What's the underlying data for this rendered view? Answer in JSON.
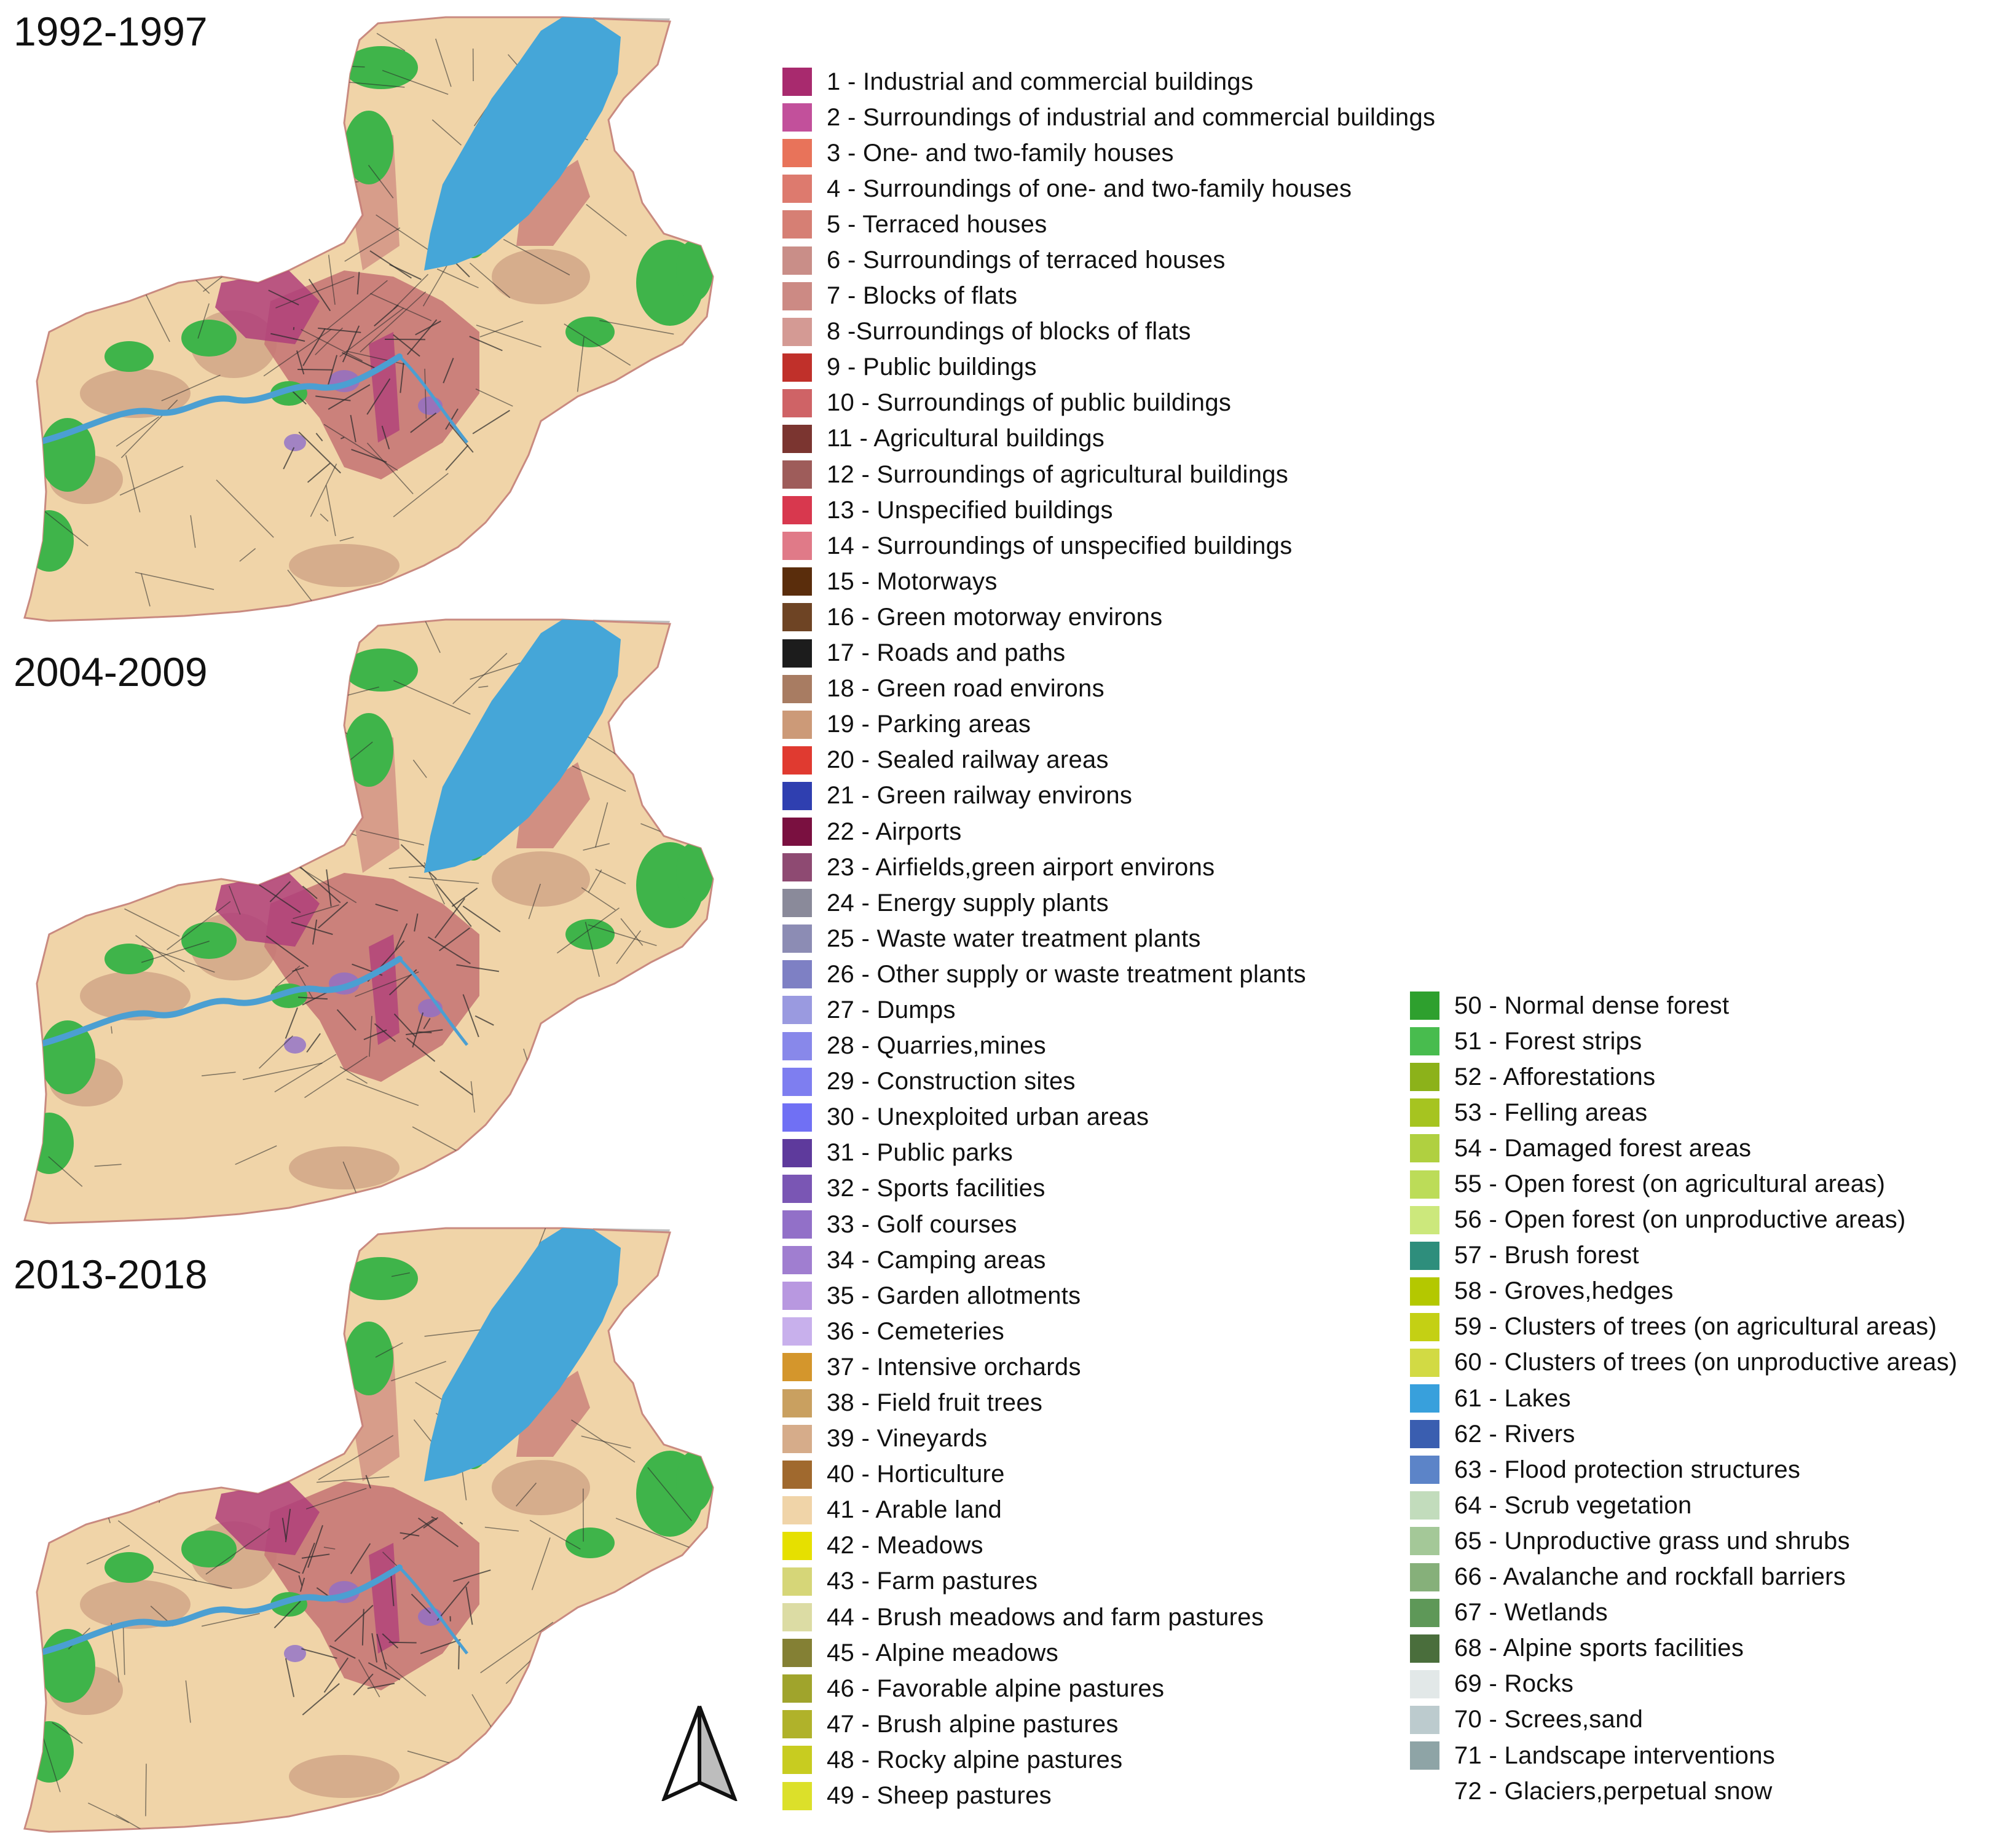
{
  "panels": [
    {
      "title": "1992-1997"
    },
    {
      "title": "2004-2009"
    },
    {
      "title": "2013-2018"
    }
  ],
  "map_colors": {
    "lake": "#45a6d8",
    "arable": "#f0d4a8",
    "urban": "#c77876",
    "industrial": "#b0407a",
    "forest": "#3fb44a",
    "river": "#4b9fd2",
    "vineyard": "#d6ad8c",
    "foreign": "#c0c0c0",
    "roads": "#2a2a2a",
    "parks": "#8e6ec9"
  },
  "north_arrow_icon": "north-arrow-icon",
  "legend": {
    "left": [
      {
        "label": "1 - Industrial and commercial buildings",
        "color": "#a82a6e"
      },
      {
        "label": "2 - Surroundings of industrial and commercial buildings",
        "color": "#c2509b"
      },
      {
        "label": "3 - One- and two-family houses",
        "color": "#e8735a"
      },
      {
        "label": "4 - Surroundings of one- and two-family houses",
        "color": "#dd7a6e"
      },
      {
        "label": "5 - Terraced houses",
        "color": "#d67f74"
      },
      {
        "label": "6 - Surroundings of terraced houses",
        "color": "#c98e88"
      },
      {
        "label": "7 - Blocks of flats",
        "color": "#cc8a84"
      },
      {
        "label": "8 -Surroundings of blocks of flats",
        "color": "#d49a94"
      },
      {
        "label": "9 - Public buildings",
        "color": "#c0302a"
      },
      {
        "label": "10 - Surroundings of public buildings",
        "color": "#cf6366"
      },
      {
        "label": "11 - Agricultural buildings",
        "color": "#7b3530"
      },
      {
        "label": "12 - Surroundings of agricultural buildings",
        "color": "#9e5c5a"
      },
      {
        "label": "13 - Unspecified buildings",
        "color": "#d8384e"
      },
      {
        "label": "14 - Surroundings of unspecified buildings",
        "color": "#e07a88"
      },
      {
        "label": "15 - Motorways",
        "color": "#5a2d0c"
      },
      {
        "label": "16 - Green motorway environs",
        "color": "#6e4424"
      },
      {
        "label": "17 - Roads and paths",
        "color": "#1c1c1c"
      },
      {
        "label": "18 - Green road environs",
        "color": "#a87c62"
      },
      {
        "label": "19 - Parking areas",
        "color": "#cc9a78"
      },
      {
        "label": "20 - Sealed railway areas",
        "color": "#e03a30"
      },
      {
        "label": "21 - Green railway environs",
        "color": "#2f3fb0"
      },
      {
        "label": "22 - Airports",
        "color": "#7a1040"
      },
      {
        "label": "23 - Airfields,green airport environs",
        "color": "#8e4a72"
      },
      {
        "label": "24 - Energy supply plants",
        "color": "#8a8a9a"
      },
      {
        "label": "25 - Waste water treatment plants",
        "color": "#8c8cb4"
      },
      {
        "label": "26 - Other supply or waste treatment plants",
        "color": "#7e80c4"
      },
      {
        "label": "27 - Dumps",
        "color": "#9a9ae0"
      },
      {
        "label": "28 - Quarries,mines",
        "color": "#8888ea"
      },
      {
        "label": "29 - Construction sites",
        "color": "#7e7ef0"
      },
      {
        "label": "30 - Unexploited urban areas",
        "color": "#7070f4"
      },
      {
        "label": "31 - Public parks",
        "color": "#5e3a9c"
      },
      {
        "label": "32 - Sports facilities",
        "color": "#7a56b4"
      },
      {
        "label": "33 - Golf courses",
        "color": "#9270c8"
      },
      {
        "label": "34 - Camping areas",
        "color": "#a07ed0"
      },
      {
        "label": "35 - Garden allotments",
        "color": "#b898e0"
      },
      {
        "label": "36 - Cemeteries",
        "color": "#c8b0ec"
      },
      {
        "label": "37 - Intensive orchards",
        "color": "#d4962c"
      },
      {
        "label": "38 - Field fruit trees",
        "color": "#c9a060"
      },
      {
        "label": "39 - Vineyards",
        "color": "#d6ac8a"
      },
      {
        "label": "40 - Horticulture",
        "color": "#a0692e"
      },
      {
        "label": "41 - Arable land",
        "color": "#f0d4a8"
      },
      {
        "label": "42 - Meadows",
        "color": "#e6e000"
      },
      {
        "label": "43 - Farm pastures",
        "color": "#d6d678"
      },
      {
        "label": "44 - Brush meadows and farm pastures",
        "color": "#dcdca4"
      },
      {
        "label": "45 - Alpine meadows",
        "color": "#848034"
      },
      {
        "label": "46 - Favorable alpine pastures",
        "color": "#a0a42c"
      },
      {
        "label": "47 - Brush alpine pastures",
        "color": "#b0b22a"
      },
      {
        "label": "48 - Rocky alpine pastures",
        "color": "#c8cc20"
      },
      {
        "label": "49 - Sheep pastures",
        "color": "#dce02a"
      }
    ],
    "right": [
      {
        "label": "50 - Normal dense forest",
        "color": "#2ea02e"
      },
      {
        "label": "51 - Forest strips",
        "color": "#48bc4e"
      },
      {
        "label": "52 - Afforestations",
        "color": "#8cb21a"
      },
      {
        "label": "53 - Felling areas",
        "color": "#a6c420"
      },
      {
        "label": "54 - Damaged forest areas",
        "color": "#b0d040"
      },
      {
        "label": "55 - Open forest (on agricultural areas)",
        "color": "#bcdc58"
      },
      {
        "label": "56 - Open forest (on unproductive areas)",
        "color": "#cce87c"
      },
      {
        "label": "57 - Brush forest",
        "color": "#2e8e7c"
      },
      {
        "label": "58 - Groves,hedges",
        "color": "#b4c800"
      },
      {
        "label": "59 - Clusters of trees (on agricultural areas)",
        "color": "#c4d014"
      },
      {
        "label": "60 - Clusters of trees (on unproductive areas)",
        "color": "#d2da44"
      },
      {
        "label": "61 - Lakes",
        "color": "#38a0dc"
      },
      {
        "label": "62 - Rivers",
        "color": "#3a5eb0"
      },
      {
        "label": "63 - Flood protection structures",
        "color": "#5c84c8"
      },
      {
        "label": "64 - Scrub vegetation",
        "color": "#c2dcbc"
      },
      {
        "label": "65 - Unproductive grass und shrubs",
        "color": "#a4c898"
      },
      {
        "label": "66 - Avalanche and rockfall barriers",
        "color": "#86b07a"
      },
      {
        "label": "67 - Wetlands",
        "color": "#5e9858"
      },
      {
        "label": "68 - Alpine sports facilities",
        "color": "#4a6e3c"
      },
      {
        "label": "69 - Rocks",
        "color": "#e2e8e8"
      },
      {
        "label": "70 - Screes,sand",
        "color": "#bccbce"
      },
      {
        "label": "71 - Landscape interventions",
        "color": "#8ea4a6"
      },
      {
        "label": "72 - Glaciers,perpetual snow",
        "color": "#ffffff"
      }
    ]
  }
}
